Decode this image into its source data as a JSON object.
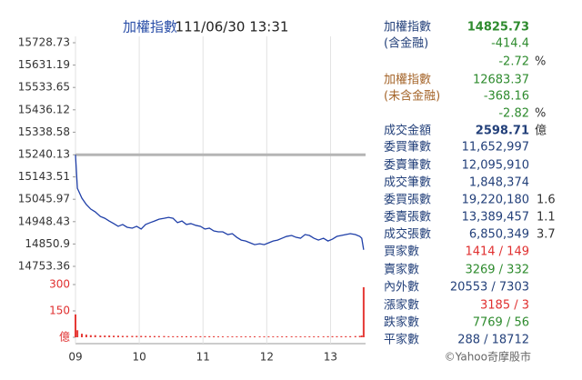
{
  "chart_data": {
    "type": "line",
    "title": "加權指數",
    "subtitle": "111/06/30 13:31",
    "x": [
      9,
      9.03,
      9.1,
      9.17,
      9.24,
      9.31,
      9.39,
      9.46,
      9.53,
      9.6,
      9.67,
      9.74,
      9.81,
      9.89,
      9.96,
      10.03,
      10.1,
      10.17,
      10.24,
      10.31,
      10.39,
      10.46,
      10.53,
      10.6,
      10.67,
      10.74,
      10.81,
      10.89,
      10.96,
      11.03,
      11.1,
      11.17,
      11.24,
      11.31,
      11.39,
      11.46,
      11.53,
      11.6,
      11.67,
      11.74,
      11.81,
      11.89,
      11.96,
      12.03,
      12.1,
      12.17,
      12.24,
      12.31,
      12.39,
      12.46,
      12.53,
      12.6,
      12.67,
      12.74,
      12.81,
      12.89,
      12.96,
      13.03,
      13.1,
      13.17,
      13.24,
      13.31,
      13.39,
      13.46,
      13.49,
      13.52
    ],
    "series": [
      {
        "color": "#1f3fa8",
        "values": [
          15240.13,
          15094,
          15051,
          15023,
          15003,
          14991,
          14971,
          14963,
          14951,
          14940,
          14928,
          14936,
          14924,
          14920,
          14928,
          14916,
          14936,
          14944,
          14951,
          14959,
          14963,
          14967,
          14963,
          14944,
          14951,
          14936,
          14940,
          14932,
          14928,
          14916,
          14920,
          14908,
          14904,
          14904,
          14892,
          14896,
          14880,
          14868,
          14864,
          14856,
          14848,
          14852,
          14848,
          14856,
          14864,
          14868,
          14876,
          14884,
          14888,
          14880,
          14876,
          14892,
          14888,
          14876,
          14868,
          14876,
          14864,
          14872,
          14884,
          14888,
          14892,
          14896,
          14892,
          14884,
          14876,
          14825.73
        ]
      },
      {
        "type": "bar",
        "axis": "y2",
        "color": "#e53935",
        "values": [
          130,
          40,
          20,
          15,
          12,
          12,
          10,
          10,
          10,
          9,
          9,
          8,
          8,
          8,
          8,
          8,
          7,
          7,
          7,
          7,
          7,
          6,
          6,
          6,
          6,
          6,
          6,
          6,
          6,
          6,
          6,
          6,
          5,
          5,
          5,
          5,
          5,
          5,
          5,
          5,
          5,
          5,
          5,
          5,
          5,
          5,
          5,
          5,
          5,
          5,
          5,
          5,
          5,
          5,
          5,
          5,
          6,
          6,
          6,
          6,
          6,
          6,
          7,
          8,
          10,
          285
        ]
      }
    ],
    "reference_line": 15240.13,
    "reference_color": "#b5b5b5",
    "xlim": [
      9,
      13.55
    ],
    "xticks": [
      {
        "value": 9,
        "label": "09"
      },
      10,
      11,
      12,
      13
    ],
    "ylim": [
      14753.36,
      15728.73
    ],
    "yticks": [
      14753.36,
      14850.9,
      14948.43,
      15045.97,
      15143.51,
      15240.13,
      15338.58,
      15436.12,
      15533.65,
      15631.19,
      15728.73
    ],
    "y2lim": [
      0,
      300
    ],
    "y2ticks": [
      {
        "value": 0,
        "label": "億"
      },
      150,
      300
    ],
    "grid": "x"
  },
  "panel": {
    "rows": [
      {
        "label": "加權指數",
        "value": "14825.73"
      },
      {
        "label": "(含金融)",
        "value": "-414.4"
      },
      {
        "value": "-2.72",
        "extra": "%"
      },
      {
        "label": "加權指數",
        "value": "12683.37"
      },
      {
        "label": "(未含金融)",
        "value": "-368.16"
      },
      {
        "value": "-2.82",
        "extra": "%"
      },
      {
        "label": "成交金額",
        "value": "2598.71",
        "extra": "億"
      },
      {
        "label": "委買筆數",
        "value": "11,652,997"
      },
      {
        "label": "委賣筆數",
        "value": "12,095,910"
      },
      {
        "label": "成交筆數",
        "value": "1,848,374"
      },
      {
        "label": "委買張數",
        "value": "19,220,180",
        "extra": "1.6"
      },
      {
        "label": "委賣張數",
        "value": "13,389,457",
        "extra": "1.1"
      },
      {
        "label": "成交張數",
        "value": "6,850,349",
        "extra": "3.7"
      },
      {
        "label": "買家數",
        "value": "1414 / 149"
      },
      {
        "label": "賣家數",
        "value": "3269 / 332"
      },
      {
        "label": "內外數",
        "value": "20553 / 7303"
      },
      {
        "label": "漲家數",
        "value": "3185 / 3"
      },
      {
        "label": "跌家數",
        "value": "7769 / 56"
      },
      {
        "label": "平家數",
        "value": "288 / 18712"
      }
    ],
    "copyright": "©Yahoo奇摩股市"
  }
}
